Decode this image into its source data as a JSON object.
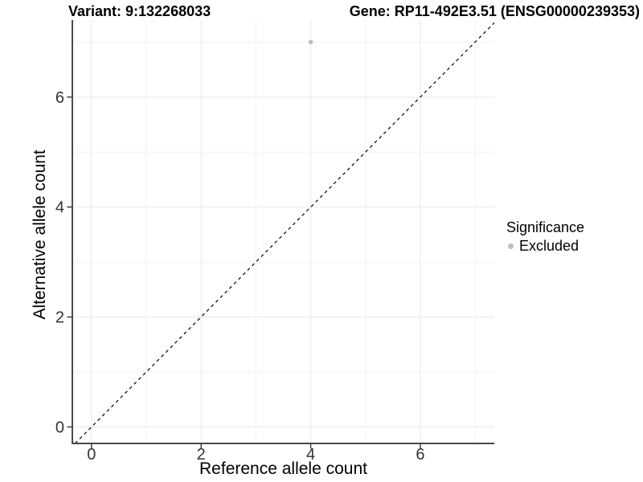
{
  "chart_data": {
    "type": "scatter",
    "title_variant": "Variant: 9:132268033",
    "title_gene": "Gene: RP11-492E3.51 (ENSG00000239353)",
    "xlabel": "Reference allele count",
    "ylabel": "Alternative allele count",
    "xlim": [
      -0.35,
      7.35
    ],
    "ylim": [
      -0.3,
      7.4
    ],
    "xticks": [
      0,
      2,
      4,
      6
    ],
    "yticks": [
      0,
      2,
      4,
      6
    ],
    "grid_major": [
      0,
      2,
      4,
      6
    ],
    "grid_minor": [
      1,
      3,
      5,
      7
    ],
    "grid_color_major": "#e8e8e8",
    "grid_color_minor": "#f2f2f2",
    "axis_color": "#4a4a4a",
    "tick_color": "#333333",
    "tick_label_color": "#333333",
    "identity_line": {
      "slope": 1,
      "intercept": 0,
      "style": "dashed",
      "color": "#000000"
    },
    "series": [
      {
        "name": "Excluded",
        "color": "#bebebe",
        "points": [
          {
            "x": 4,
            "y": 7
          }
        ]
      }
    ],
    "legend": {
      "title": "Significance",
      "position": "right",
      "items": [
        {
          "label": "Excluded",
          "color": "#bebebe"
        }
      ]
    }
  }
}
